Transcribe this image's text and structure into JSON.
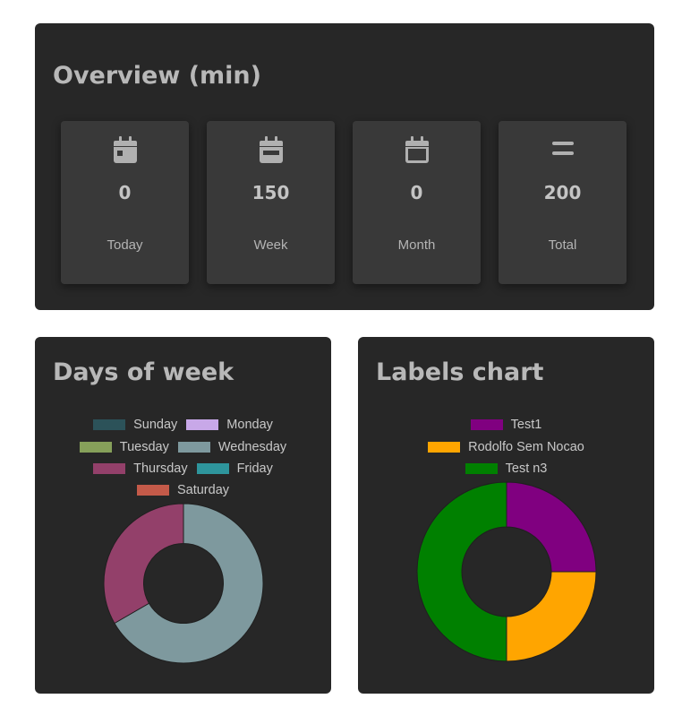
{
  "overview": {
    "title": "Overview (min)",
    "cards": [
      {
        "icon": "calendar-day-icon",
        "value": "0",
        "label": "Today"
      },
      {
        "icon": "calendar-week-icon",
        "value": "150",
        "label": "Week"
      },
      {
        "icon": "calendar-month-icon",
        "value": "0",
        "label": "Month"
      },
      {
        "icon": "equals-icon",
        "value": "200",
        "label": "Total"
      }
    ]
  },
  "days_chart": {
    "title": "Days of week",
    "legend": [
      {
        "label": "Sunday",
        "color": "#2c5259"
      },
      {
        "label": "Monday",
        "color": "#c8a8e8"
      },
      {
        "label": "Tuesday",
        "color": "#86a05a"
      },
      {
        "label": "Wednesday",
        "color": "#7e999e"
      },
      {
        "label": "Thursday",
        "color": "#93406a"
      },
      {
        "label": "Friday",
        "color": "#2e959c"
      },
      {
        "label": "Saturday",
        "color": "#c45a49"
      }
    ]
  },
  "labels_chart": {
    "title": "Labels chart",
    "legend": [
      {
        "label": "Test1",
        "color": "#800080"
      },
      {
        "label": "Rodolfo Sem Nocao",
        "color": "#ffa500"
      },
      {
        "label": "Test n3",
        "color": "#008000"
      }
    ]
  },
  "chart_data": [
    {
      "type": "pie",
      "title": "Days of week",
      "categories": [
        "Sunday",
        "Monday",
        "Tuesday",
        "Wednesday",
        "Thursday",
        "Friday",
        "Saturday"
      ],
      "values": [
        0,
        0,
        0,
        100,
        50,
        0,
        0
      ],
      "colors": [
        "#2c5259",
        "#c8a8e8",
        "#86a05a",
        "#7e999e",
        "#93406a",
        "#2e959c",
        "#c45a49"
      ],
      "legend_position": "top"
    },
    {
      "type": "pie",
      "title": "Labels chart",
      "categories": [
        "Test1",
        "Rodolfo Sem Nocao",
        "Test n3"
      ],
      "values": [
        1,
        1,
        2
      ],
      "colors": [
        "#800080",
        "#ffa500",
        "#008000"
      ],
      "legend_position": "top"
    }
  ]
}
